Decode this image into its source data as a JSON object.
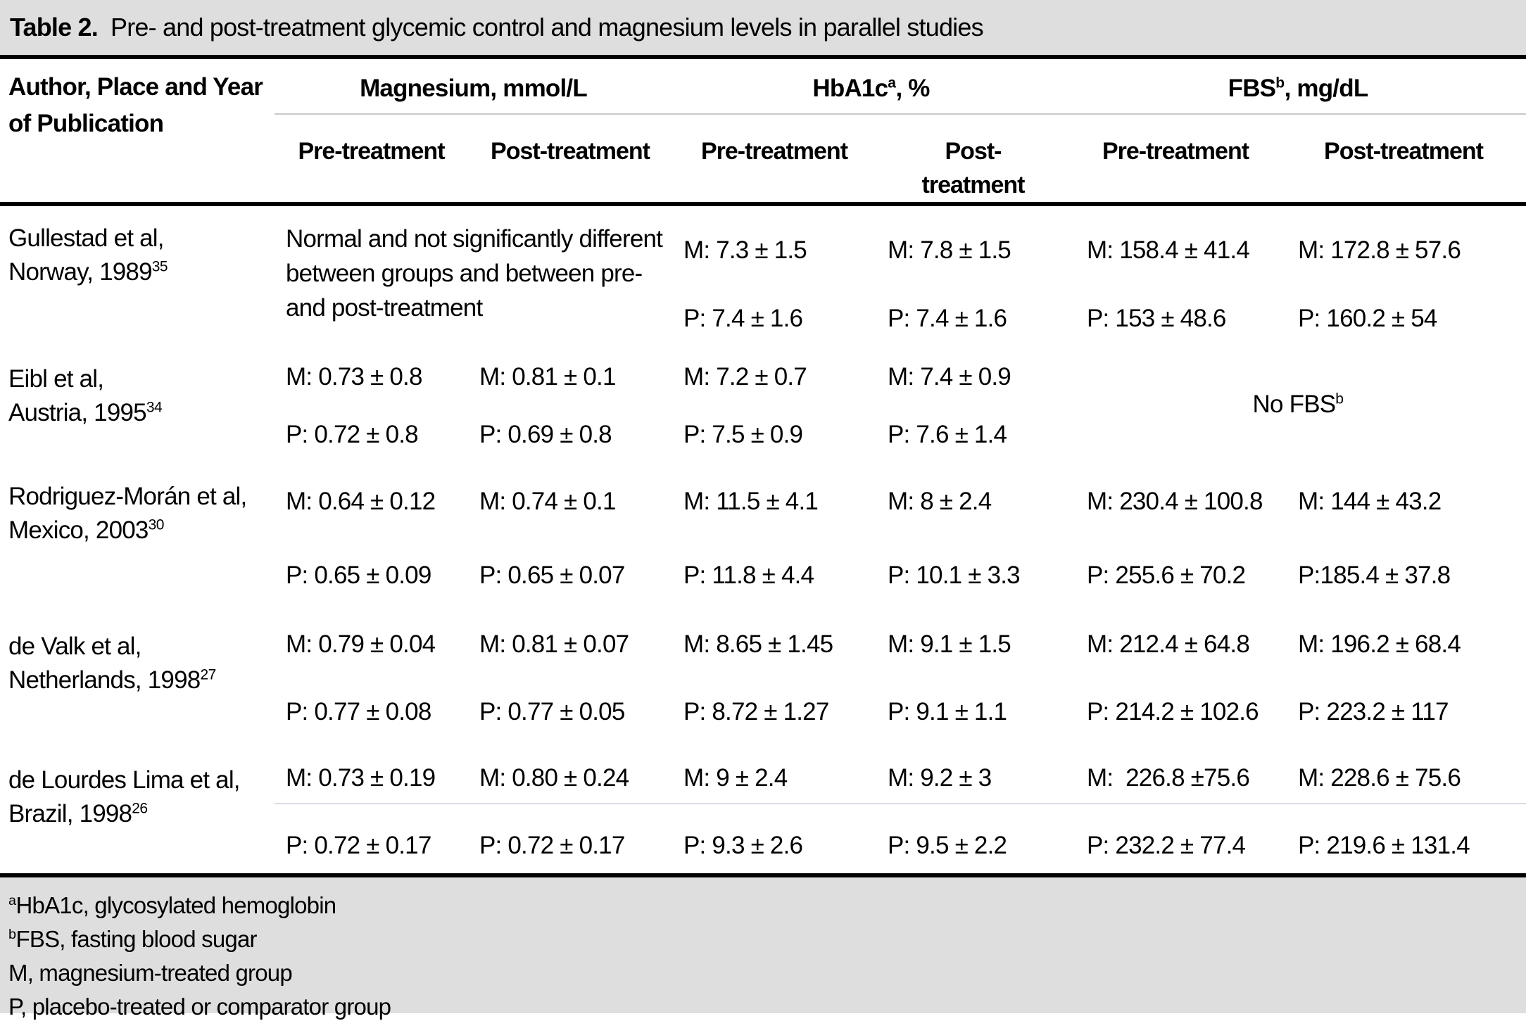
{
  "title": {
    "label": "Table 2.",
    "text": "Pre- and post-treatment glycemic control and magnesium levels in parallel studies"
  },
  "header": {
    "author_col": "Author, Place and Year of Publication",
    "groups": [
      {
        "name": "Magnesium, mmol/L",
        "sup": "",
        "suffix": ""
      },
      {
        "name": "HbA1c",
        "sup": "a",
        "suffix": ", %"
      },
      {
        "name": "FBS",
        "sup": "b",
        "suffix": ", mg/dL"
      }
    ],
    "subheaders": [
      "Pre-treatment",
      "Post-treatment",
      "Pre-treatment",
      "Post-treatment",
      "Pre-treatment",
      "Post-treatment"
    ]
  },
  "rows": [
    {
      "author": {
        "line1": "Gullestad et al,",
        "line2": "Norway, 1989",
        "sup": "35"
      },
      "mg_note": "Normal and not significantly different between groups and between pre- and post-treatment",
      "hba1c_pre": {
        "m": "M: 7.3 ± 1.5",
        "p": "P: 7.4 ± 1.6"
      },
      "hba1c_post": {
        "m": "M: 7.8 ± 1.5",
        "p": "P: 7.4 ± 1.6"
      },
      "fbs_pre": {
        "m": "M: 158.4 ± 41.4",
        "p": "P: 153 ± 48.6"
      },
      "fbs_post": {
        "m": "M: 172.8 ± 57.6",
        "p": "P: 160.2 ± 54"
      }
    },
    {
      "author": {
        "line1": "Eibl et al,",
        "line2": "Austria, 1995",
        "sup": "34"
      },
      "mg_pre": {
        "m": "M: 0.73 ± 0.8",
        "p": "P: 0.72 ± 0.8"
      },
      "mg_post": {
        "m": "M: 0.81 ± 0.1",
        "p": "P: 0.69 ± 0.8"
      },
      "hba1c_pre": {
        "m": "M: 7.2 ± 0.7",
        "p": "P: 7.5 ± 0.9"
      },
      "hba1c_post": {
        "m": "M: 7.4 ± 0.9",
        "p": "P: 7.6 ± 1.4"
      },
      "fbs_note": {
        "text": "No FBS",
        "sup": "b"
      }
    },
    {
      "author": {
        "line1": "Rodriguez-Morán et al,",
        "line2": "Mexico, 2003",
        "sup": "30"
      },
      "mg_pre": {
        "m": "M: 0.64 ± 0.12",
        "p": "P: 0.65 ± 0.09"
      },
      "mg_post": {
        "m": "M: 0.74 ± 0.1",
        "p": "P: 0.65 ± 0.07"
      },
      "hba1c_pre": {
        "m": "M: 11.5 ± 4.1",
        "p": "P: 11.8 ± 4.4"
      },
      "hba1c_post": {
        "m": "M: 8 ± 2.4",
        "p": "P: 10.1 ± 3.3"
      },
      "fbs_pre": {
        "m": "M: 230.4 ± 100.8",
        "p": "P: 255.6 ± 70.2"
      },
      "fbs_post": {
        "m": "M: 144 ± 43.2",
        "p": "P:185.4 ± 37.8"
      }
    },
    {
      "author": {
        "line1": "de Valk et al,",
        "line2": "Netherlands, 1998",
        "sup": "27"
      },
      "mg_pre": {
        "m": "M: 0.79 ± 0.04",
        "p": "P: 0.77 ± 0.08"
      },
      "mg_post": {
        "m": "M: 0.81 ± 0.07",
        "p": "P: 0.77 ± 0.05"
      },
      "hba1c_pre": {
        "m": "M: 8.65 ± 1.45",
        "p": "P: 8.72 ± 1.27"
      },
      "hba1c_post": {
        "m": "M: 9.1 ± 1.5",
        "p": "P: 9.1 ± 1.1"
      },
      "fbs_pre": {
        "m": "M: 212.4 ± 64.8",
        "p": "P: 214.2 ± 102.6"
      },
      "fbs_post": {
        "m": "M: 196.2 ± 68.4",
        "p": "P: 223.2 ± 117"
      }
    },
    {
      "author": {
        "line1": "de Lourdes Lima et al,",
        "line2": "Brazil, 1998",
        "sup": "26"
      },
      "mg_pre": {
        "m": "M: 0.73 ± 0.19",
        "p": "P: 0.72 ± 0.17"
      },
      "mg_post": {
        "m": "M: 0.80 ± 0.24",
        "p": "P: 0.72 ± 0.17"
      },
      "hba1c_pre": {
        "m": "M: 9 ± 2.4",
        "p": "P: 9.3 ± 2.6"
      },
      "hba1c_post": {
        "m": "M: 9.2 ± 3",
        "p": "P: 9.5 ± 2.2"
      },
      "fbs_pre": {
        "m": "M:  226.8 ±75.6",
        "p": "P: 232.2 ± 77.4"
      },
      "fbs_post": {
        "m": "M: 228.6 ± 75.6",
        "p": "P: 219.6 ± 131.4"
      }
    }
  ],
  "footnotes": [
    {
      "sup": "a",
      "text": "HbA1c, glycosylated hemoglobin"
    },
    {
      "sup": "b",
      "text": "FBS, fasting blood sugar"
    },
    {
      "sup": "",
      "text": "M, magnesium-treated group"
    },
    {
      "sup": "",
      "text": "P, placebo-treated or comparator group"
    }
  ],
  "colors": {
    "band_gray": "#dedede",
    "rule_black": "#000000",
    "thin_rule": "#c9c9c9",
    "faint_rule": "#d8dde3"
  }
}
